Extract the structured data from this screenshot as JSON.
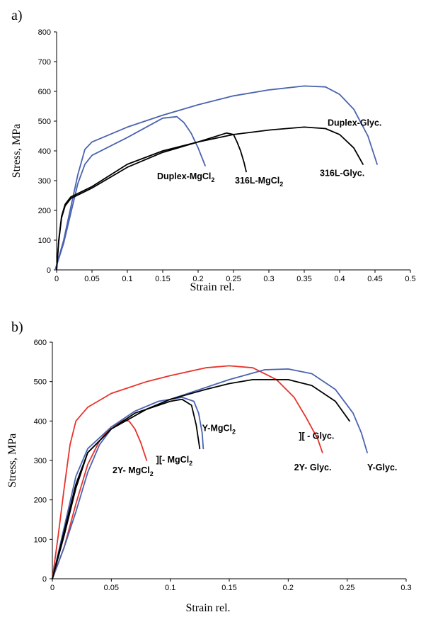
{
  "chart_data": [
    {
      "type": "line",
      "panel_label": "a)",
      "xlabel": "Strain rel.",
      "ylabel": "Stress,  MPa",
      "xlim": [
        0,
        0.5
      ],
      "ylim": [
        0,
        800
      ],
      "x_ticks": [
        "0",
        "0.05",
        "0.1",
        "0.15",
        "0.2",
        "0.25",
        "0.3",
        "0.35",
        "0.4",
        "0.45",
        "0.5"
      ],
      "y_ticks": [
        "0",
        "100",
        "200",
        "300",
        "400",
        "500",
        "600",
        "700",
        "800"
      ],
      "grid": false,
      "series": [
        {
          "name": "Duplex-Glyc.",
          "color": "#4a63b0",
          "x": [
            -0.002,
            0.01,
            0.02,
            0.03,
            0.04,
            0.05,
            0.1,
            0.15,
            0.2,
            0.25,
            0.3,
            0.35,
            0.38,
            0.4,
            0.42,
            0.44,
            0.453
          ],
          "y": [
            0,
            100,
            210,
            320,
            405,
            430,
            480,
            520,
            555,
            585,
            605,
            618,
            615,
            590,
            540,
            450,
            355
          ]
        },
        {
          "name": "Duplex-MgCl",
          "color": "#4a63b0",
          "x": [
            -0.002,
            0.01,
            0.02,
            0.03,
            0.04,
            0.05,
            0.1,
            0.15,
            0.17,
            0.18,
            0.19,
            0.2,
            0.21
          ],
          "y": [
            0,
            90,
            190,
            290,
            355,
            385,
            445,
            510,
            515,
            495,
            460,
            410,
            350
          ]
        },
        {
          "name": "316L-Glyc.",
          "color": "#000000",
          "x": [
            0,
            0.003,
            0.007,
            0.012,
            0.02,
            0.05,
            0.1,
            0.15,
            0.2,
            0.25,
            0.3,
            0.35,
            0.38,
            0.4,
            0.42,
            0.433
          ],
          "y": [
            0,
            100,
            180,
            220,
            245,
            280,
            355,
            400,
            430,
            455,
            470,
            480,
            475,
            455,
            410,
            355
          ]
        },
        {
          "name": "316L-MgCl",
          "color": "#000000",
          "x": [
            0,
            0.003,
            0.007,
            0.012,
            0.02,
            0.05,
            0.1,
            0.15,
            0.2,
            0.24,
            0.25,
            0.255,
            0.26,
            0.265,
            0.268
          ],
          "y": [
            0,
            95,
            175,
            215,
            240,
            275,
            345,
            395,
            430,
            460,
            455,
            430,
            400,
            360,
            330
          ]
        }
      ],
      "annotations": [
        {
          "text": "Duplex-Glyc.",
          "subscript": "",
          "x": 0.383,
          "y": 485
        },
        {
          "text": "Duplex-MgCl",
          "subscript": "2",
          "x": 0.142,
          "y": 305
        },
        {
          "text": "316L-MgCl",
          "subscript": "2",
          "x": 0.252,
          "y": 290
        },
        {
          "text": "316L-Glyc.",
          "subscript": "",
          "x": 0.372,
          "y": 315
        }
      ]
    },
    {
      "type": "line",
      "panel_label": "b)",
      "xlabel": "Strain rel.",
      "ylabel": "Stress,  MPa",
      "xlim": [
        0,
        0.3
      ],
      "ylim": [
        0,
        600
      ],
      "x_ticks": [
        "0",
        "0.05",
        "0.1",
        "0.15",
        "0.2",
        "0.25",
        "0.3"
      ],
      "y_ticks": [
        "0",
        "100",
        "200",
        "300",
        "400",
        "500",
        "600"
      ],
      "grid": false,
      "series": [
        {
          "name": "2Y- Glyc.",
          "color": "#e8322a",
          "x": [
            0,
            0.005,
            0.01,
            0.015,
            0.02,
            0.03,
            0.05,
            0.08,
            0.1,
            0.13,
            0.15,
            0.17,
            0.19,
            0.205,
            0.215,
            0.225,
            0.229
          ],
          "y": [
            0,
            110,
            230,
            340,
            400,
            435,
            470,
            500,
            515,
            535,
            540,
            535,
            505,
            460,
            410,
            355,
            320
          ]
        },
        {
          "name": "2Y- MgCl",
          "color": "#e8322a",
          "x": [
            0,
            0.01,
            0.02,
            0.03,
            0.04,
            0.05,
            0.06,
            0.065,
            0.07,
            0.075,
            0.08
          ],
          "y": [
            0,
            80,
            190,
            290,
            350,
            385,
            402,
            400,
            380,
            345,
            300
          ]
        },
        {
          "name": "Y-Glyc.",
          "color": "#4a63b0",
          "x": [
            0,
            0.01,
            0.02,
            0.03,
            0.04,
            0.05,
            0.08,
            0.1,
            0.15,
            0.18,
            0.2,
            0.22,
            0.24,
            0.255,
            0.262,
            0.267
          ],
          "y": [
            0,
            80,
            170,
            270,
            340,
            380,
            430,
            455,
            505,
            530,
            532,
            520,
            480,
            420,
            370,
            320
          ]
        },
        {
          "name": "Y-MgCl",
          "color": "#4a63b0",
          "x": [
            0,
            0.01,
            0.02,
            0.03,
            0.05,
            0.07,
            0.09,
            0.11,
            0.12,
            0.124,
            0.127,
            0.128
          ],
          "y": [
            0,
            130,
            260,
            330,
            385,
            425,
            450,
            460,
            450,
            420,
            370,
            330
          ]
        },
        {
          "name": "][ - Glyc.",
          "color": "#000000",
          "x": [
            0,
            0.01,
            0.02,
            0.03,
            0.05,
            0.08,
            0.1,
            0.13,
            0.15,
            0.17,
            0.2,
            0.22,
            0.24,
            0.252
          ],
          "y": [
            0,
            120,
            240,
            320,
            380,
            430,
            455,
            480,
            495,
            505,
            505,
            490,
            450,
            400
          ]
        },
        {
          "name": "][- MgCl",
          "color": "#000000",
          "x": [
            0,
            0.01,
            0.02,
            0.03,
            0.05,
            0.07,
            0.09,
            0.1,
            0.11,
            0.118,
            0.122,
            0.125
          ],
          "y": [
            0,
            110,
            230,
            320,
            380,
            420,
            440,
            450,
            455,
            440,
            390,
            330
          ]
        }
      ],
      "annotations": [
        {
          "text": "Y-MgCl",
          "subscript": "2",
          "x": 0.127,
          "y": 375
        },
        {
          "text": "][- MgCl",
          "subscript": "2",
          "x": 0.088,
          "y": 295
        },
        {
          "text": "2Y- MgCl",
          "subscript": "2",
          "x": 0.051,
          "y": 268
        },
        {
          "text": "][ - Glyc.",
          "subscript": "",
          "x": 0.209,
          "y": 355
        },
        {
          "text": "2Y- Glyc.",
          "subscript": "",
          "x": 0.205,
          "y": 275
        },
        {
          "text": "Y-Glyc.",
          "subscript": "",
          "x": 0.267,
          "y": 275
        }
      ]
    }
  ]
}
